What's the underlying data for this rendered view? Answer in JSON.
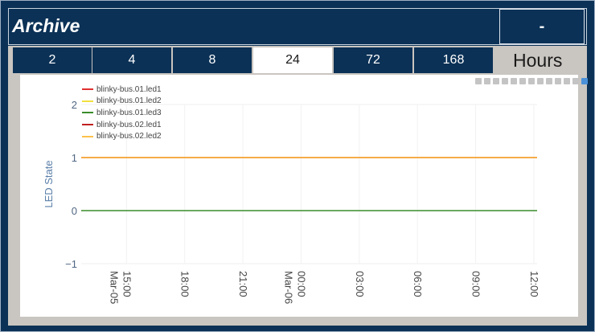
{
  "header": {
    "title": "Archive",
    "minimize_label": "-"
  },
  "range": {
    "buttons": [
      "2",
      "4",
      "8",
      "24",
      "72",
      "168"
    ],
    "active": "24",
    "unit_label": "Hours"
  },
  "modebar": {
    "icons": [
      "camera-icon",
      "zoom-icon",
      "pan-icon",
      "select-box-icon",
      "lasso-icon",
      "zoom-in-icon",
      "zoom-out-icon",
      "autoscale-icon",
      "reset-axes-icon",
      "spike-lines-icon",
      "hover-closest-icon",
      "hover-compare-icon",
      "plotly-logo-icon"
    ]
  },
  "chart_data": {
    "type": "line",
    "ylabel": "LED State",
    "ylim": [
      -1,
      2
    ],
    "y_ticks": [
      "2",
      "1",
      "0",
      "−1"
    ],
    "x_ticks": [
      {
        "line1": "15:00",
        "line2": "Mar-05"
      },
      {
        "line1": "18:00",
        "line2": ""
      },
      {
        "line1": "21:00",
        "line2": ""
      },
      {
        "line1": "00:00",
        "line2": "Mar-06"
      },
      {
        "line1": "03:00",
        "line2": ""
      },
      {
        "line1": "06:00",
        "line2": ""
      },
      {
        "line1": "09:00",
        "line2": ""
      },
      {
        "line1": "12:00",
        "line2": ""
      }
    ],
    "x_range": [
      "2024-03-05 12:40",
      "2024-03-06 12:10"
    ],
    "series": [
      {
        "name": "blinky-bus.01.led1",
        "color": "#e03030",
        "value": 1
      },
      {
        "name": "blinky-bus.01.led2",
        "color": "#f2e040",
        "value": 1
      },
      {
        "name": "blinky-bus.01.led3",
        "color": "#3a8c2a",
        "value": 0
      },
      {
        "name": "blinky-bus.02.led1",
        "color": "#c02020",
        "value": 1
      },
      {
        "name": "blinky-bus.02.led2",
        "color": "#ffc04a",
        "value": 1
      }
    ],
    "legend_position": "top-left",
    "grid": true
  }
}
